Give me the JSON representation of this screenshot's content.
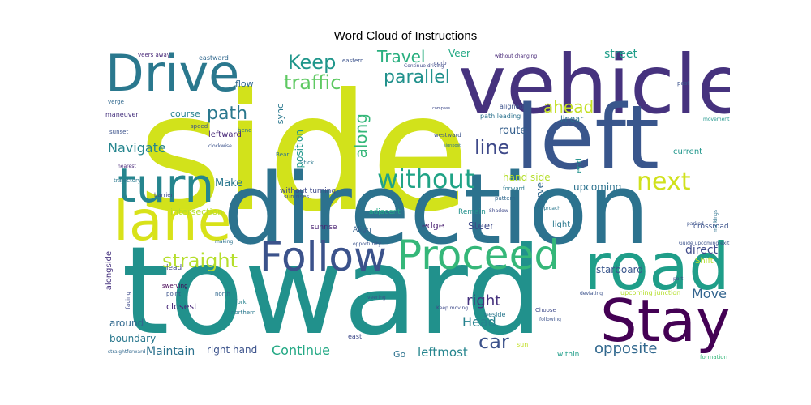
{
  "title": "Word Cloud of Instructions",
  "words": [
    {
      "text": "side",
      "color": "#d2e21b"
    },
    {
      "text": "toward",
      "color": "#21918c"
    },
    {
      "text": "direction",
      "color": "#2c728e"
    },
    {
      "text": "vehicle",
      "color": "#46327e"
    },
    {
      "text": "left",
      "color": "#39568c"
    },
    {
      "text": "road",
      "color": "#1f9e89"
    },
    {
      "text": "Drive",
      "color": "#2a788e"
    },
    {
      "text": "Stay",
      "color": "#440154"
    },
    {
      "text": "lane",
      "color": "#d8e219"
    },
    {
      "text": "turn",
      "color": "#25858e"
    },
    {
      "text": "Proceed",
      "color": "#35b779"
    },
    {
      "text": "Follow",
      "color": "#3b528b"
    },
    {
      "text": "without",
      "color": "#20a386"
    },
    {
      "text": "next",
      "color": "#d0e11c"
    },
    {
      "text": "Keep",
      "color": "#1f968b"
    },
    {
      "text": "traffic",
      "color": "#5ec962"
    },
    {
      "text": "Travel",
      "color": "#29af7f"
    },
    {
      "text": "parallel",
      "color": "#21918c"
    },
    {
      "text": "line",
      "color": "#3e4989"
    },
    {
      "text": "path",
      "color": "#2a788e"
    },
    {
      "text": "ahead",
      "color": "#c2df23"
    },
    {
      "text": "along",
      "color": "#35b779"
    },
    {
      "text": "straight",
      "color": "#b5de2b"
    },
    {
      "text": "Navigate",
      "color": "#25858e"
    },
    {
      "text": "car",
      "color": "#3b528b"
    },
    {
      "text": "opposite",
      "color": "#31688e"
    },
    {
      "text": "Move",
      "color": "#32648e"
    },
    {
      "text": "right",
      "color": "#46327e"
    },
    {
      "text": "Head",
      "color": "#26828e"
    },
    {
      "text": "street",
      "color": "#1f9e89"
    },
    {
      "text": "Veer",
      "color": "#22a884"
    },
    {
      "text": "upcoming",
      "color": "#2c728e"
    },
    {
      "text": "direct",
      "color": "#3e4989"
    },
    {
      "text": "Make",
      "color": "#2a788e"
    },
    {
      "text": "route",
      "color": "#355f8d"
    },
    {
      "text": "position",
      "color": "#1f968b"
    },
    {
      "text": "Continue",
      "color": "#22a884"
    },
    {
      "text": "leftmost",
      "color": "#25858e"
    },
    {
      "text": "Maintain",
      "color": "#2c728e"
    },
    {
      "text": "hand side",
      "color": "#b5de2b"
    },
    {
      "text": "curve",
      "color": "#31688e"
    },
    {
      "text": "edge",
      "color": "#481f70"
    },
    {
      "text": "Steer",
      "color": "#3e4989"
    },
    {
      "text": "right hand",
      "color": "#3b528b"
    },
    {
      "text": "starboard",
      "color": "#39568c"
    },
    {
      "text": "around",
      "color": "#31688e"
    },
    {
      "text": "boundary",
      "color": "#2a788e"
    },
    {
      "text": "Go",
      "color": "#2c728e"
    },
    {
      "text": "intersection",
      "color": "#b5de2b"
    },
    {
      "text": "flow",
      "color": "#31688e"
    },
    {
      "text": "course",
      "color": "#26828e"
    },
    {
      "text": "leftward",
      "color": "#482878"
    },
    {
      "text": "sync",
      "color": "#2a788e"
    },
    {
      "text": "closest",
      "color": "#482878"
    },
    {
      "text": "alongside",
      "color": "#46327e"
    },
    {
      "text": "lead",
      "color": "#3e4989"
    },
    {
      "text": "end",
      "color": "#21918c"
    },
    {
      "text": "crossroad",
      "color": "#3b528b"
    },
    {
      "text": "Shift",
      "color": "#b5de2b"
    },
    {
      "text": "current",
      "color": "#1f968b"
    },
    {
      "text": "linear",
      "color": "#2c728e"
    },
    {
      "text": "light",
      "color": "#2a788e"
    },
    {
      "text": "Align",
      "color": "#355f8d"
    },
    {
      "text": "sunrise",
      "color": "#481f70"
    },
    {
      "text": "Remain",
      "color": "#21918c"
    },
    {
      "text": "adjacent",
      "color": "#22a884"
    },
    {
      "text": "without turning",
      "color": "#3e4989"
    },
    {
      "text": "eastward",
      "color": "#31688e"
    },
    {
      "text": "veers away",
      "color": "#482878"
    },
    {
      "text": "maneuver",
      "color": "#46327e"
    },
    {
      "text": "path leading",
      "color": "#2c728e"
    },
    {
      "text": "aligned",
      "color": "#3b528b"
    },
    {
      "text": "beside",
      "color": "#2a788e"
    },
    {
      "text": "within",
      "color": "#1f9e89"
    },
    {
      "text": "sun",
      "color": "#c2df23"
    },
    {
      "text": "east",
      "color": "#3e4989"
    },
    {
      "text": "upcoming junction",
      "color": "#b5de2b"
    },
    {
      "text": "north",
      "color": "#31688e"
    },
    {
      "text": "fork",
      "color": "#26828e"
    },
    {
      "text": "point",
      "color": "#3b528b"
    },
    {
      "text": "swerving",
      "color": "#440154"
    },
    {
      "text": "facing",
      "color": "#3e4989"
    },
    {
      "text": "northern",
      "color": "#2a788e"
    },
    {
      "text": "eastern",
      "color": "#3b528b"
    },
    {
      "text": "curb",
      "color": "#3e4989"
    },
    {
      "text": "westward",
      "color": "#3b528b"
    },
    {
      "text": "Continue driving",
      "color": "#3e4989"
    },
    {
      "text": "without changing",
      "color": "#482878"
    },
    {
      "text": "forward",
      "color": "#2a788e"
    },
    {
      "text": "pattern",
      "color": "#31688e"
    },
    {
      "text": "deviating",
      "color": "#3b528b"
    },
    {
      "text": "following",
      "color": "#3b528b"
    },
    {
      "text": "Choose",
      "color": "#3e4989"
    },
    {
      "text": "Guide upcoming exit",
      "color": "#3b528b"
    },
    {
      "text": "movement",
      "color": "#1f968b"
    },
    {
      "text": "past",
      "color": "#3b528b"
    },
    {
      "text": "Bear",
      "color": "#2c728e"
    },
    {
      "text": "Stick",
      "color": "#2a788e"
    },
    {
      "text": "speed",
      "color": "#3b528b"
    },
    {
      "text": "sunset",
      "color": "#3b528b"
    },
    {
      "text": "verge",
      "color": "#31688e"
    },
    {
      "text": "trajectory",
      "color": "#2a788e"
    },
    {
      "text": "barrier",
      "color": "#3e4989"
    },
    {
      "text": "bend",
      "color": "#2c728e"
    },
    {
      "text": "nearest",
      "color": "#482878"
    },
    {
      "text": "clockwise",
      "color": "#3b528b"
    },
    {
      "text": "making",
      "color": "#2c728e"
    },
    {
      "text": "veering",
      "color": "#3b528b"
    },
    {
      "text": "Keep moving",
      "color": "#3e4989"
    },
    {
      "text": "opportunity",
      "color": "#3b528b"
    },
    {
      "text": "Shadow",
      "color": "#3e4989"
    },
    {
      "text": "approach",
      "color": "#2a788e"
    },
    {
      "text": "parked",
      "color": "#3b528b"
    },
    {
      "text": "markings",
      "color": "#2c728e"
    },
    {
      "text": "port",
      "color": "#3e4989"
    },
    {
      "text": "formation",
      "color": "#35b779"
    },
    {
      "text": "sun rises",
      "color": "#3b528b"
    },
    {
      "text": "straightforward",
      "color": "#31688e"
    },
    {
      "text": "compass",
      "color": "#3e4989"
    },
    {
      "text": "signpost",
      "color": "#2c728e"
    }
  ]
}
